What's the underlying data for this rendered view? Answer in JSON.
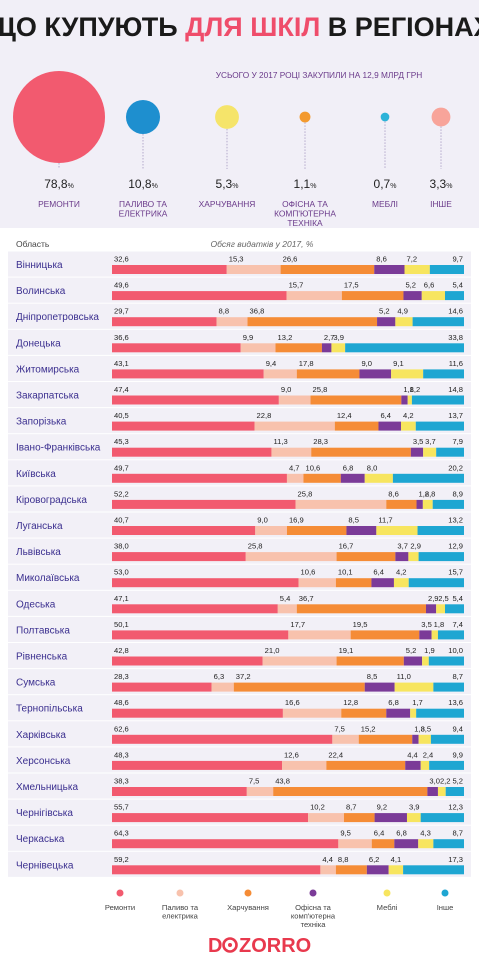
{
  "header": {
    "title_part1": "ЩО КУПУЮТЬ",
    "title_accent": "ДЛЯ ШКІЛ",
    "title_part2": "В РЕГІОНАХ",
    "subtitle": "УСЬОГО У 2017 РОЦІ ЗАКУПИЛИ НА 12,9 МЛРД ГРН"
  },
  "summary": [
    {
      "value": "78,8",
      "unit": "%",
      "label": [
        "РЕМОНТИ"
      ],
      "color": "#f25a6f",
      "share": 78.8
    },
    {
      "value": "10,8",
      "unit": "%",
      "label": [
        "ПАЛИВО ТА",
        "ЕЛЕКТРИКА"
      ],
      "color": "#1e8fcf",
      "share": 10.8
    },
    {
      "value": "5,3",
      "unit": "%",
      "label": [
        "ХАРЧУВАННЯ"
      ],
      "color": "#f5e46a",
      "share": 5.3
    },
    {
      "value": "1,1",
      "unit": "%",
      "label": [
        "ОФІСНА ТА",
        "КОМП'ЮТЕРНА",
        "ТЕХНІКА"
      ],
      "color": "#f39a2f",
      "share": 1.1
    },
    {
      "value": "0,7",
      "unit": "%",
      "label": [
        "МЕБЛІ"
      ],
      "color": "#2cb3d8",
      "share": 0.7
    },
    {
      "value": "3,3",
      "unit": "%",
      "label": [
        "ІНШЕ"
      ],
      "color": "#f8a49a",
      "share": 3.3
    }
  ],
  "table_header": {
    "region_col": "Область",
    "value_col": "Обсяг видатків у 2017, %"
  },
  "chart_data": {
    "type": "bar",
    "stacked": true,
    "orientation": "horizontal",
    "xlim": [
      0,
      100
    ],
    "categories": [
      "Вінницька",
      "Волинська",
      "Дніпропетровська",
      "Донецька",
      "Житомирська",
      "Закарпатська",
      "Запорізька",
      "Івано-Франківська",
      "Київська",
      "Кіровоградська",
      "Луганська",
      "Львівська",
      "Миколаївська",
      "Одеська",
      "Полтавська",
      "Рівненська",
      "Сумська",
      "Тернопільська",
      "Харківська",
      "Херсонська",
      "Хмельницька",
      "Чернігівська",
      "Черкаська",
      "Чернівецька"
    ],
    "series": [
      {
        "name": "Ремонти",
        "color": "#f25a6f",
        "values": [
          32.6,
          49.6,
          29.7,
          36.6,
          43.1,
          47.4,
          40.5,
          45.3,
          49.7,
          52.2,
          40.7,
          38.0,
          53.0,
          47.1,
          50.1,
          42.8,
          28.3,
          48.6,
          62.6,
          48.3,
          38.3,
          55.7,
          64.3,
          59.2
        ]
      },
      {
        "name": "Паливо та електрика",
        "color": "#f8c2ad",
        "values": [
          15.3,
          15.7,
          8.8,
          9.9,
          9.4,
          9.0,
          22.8,
          11.3,
          4.7,
          25.8,
          9.0,
          25.8,
          10.6,
          5.4,
          17.7,
          21.0,
          6.3,
          16.6,
          7.5,
          12.6,
          7.5,
          10.2,
          9.5,
          4.4
        ]
      },
      {
        "name": "Харчування",
        "color": "#f58c36",
        "values": [
          26.6,
          17.5,
          36.8,
          13.2,
          17.8,
          25.8,
          12.4,
          28.3,
          10.6,
          8.6,
          16.9,
          16.7,
          10.1,
          36.7,
          19.5,
          19.1,
          37.2,
          12.8,
          15.2,
          22.4,
          43.8,
          8.7,
          6.4,
          8.8
        ]
      },
      {
        "name": "Офісна та комп'ютерна техніка",
        "color": "#7b3b98",
        "values": [
          8.6,
          5.2,
          5.2,
          2.7,
          9.0,
          1.8,
          6.4,
          3.5,
          6.8,
          1.8,
          8.5,
          3.7,
          6.4,
          2.9,
          3.5,
          5.2,
          8.5,
          6.8,
          1.8,
          4.4,
          3.0,
          9.2,
          6.8,
          6.2
        ]
      },
      {
        "name": "Меблі",
        "color": "#f7e55f",
        "values": [
          7.2,
          6.6,
          4.9,
          3.9,
          9.1,
          1.2,
          4.2,
          3.7,
          8.0,
          2.8,
          11.7,
          2.9,
          4.2,
          2.5,
          1.8,
          1.9,
          11.0,
          1.7,
          3.5,
          2.4,
          2.2,
          3.9,
          4.3,
          4.1
        ]
      },
      {
        "name": "Інше",
        "color": "#1ea6d2",
        "values": [
          9.7,
          5.4,
          14.6,
          33.8,
          11.6,
          14.8,
          13.7,
          7.9,
          20.2,
          8.9,
          13.2,
          12.9,
          15.7,
          5.4,
          7.4,
          10.0,
          8.7,
          13.6,
          9.4,
          9.9,
          5.2,
          12.3,
          8.7,
          17.3
        ]
      }
    ]
  },
  "legend": [
    {
      "lines": [
        "Ремонти"
      ],
      "color": "#f25a6f"
    },
    {
      "lines": [
        "Паливо та",
        "електрика"
      ],
      "color": "#f8c2ad"
    },
    {
      "lines": [
        "Харчування"
      ],
      "color": "#f58c36"
    },
    {
      "lines": [
        "Офісна та",
        "комп'ютерна",
        "техніка"
      ],
      "color": "#7b3b98"
    },
    {
      "lines": [
        "Меблі"
      ],
      "color": "#f7e55f"
    },
    {
      "lines": [
        "Інше"
      ],
      "color": "#1ea6d2"
    }
  ],
  "footer": {
    "logo_pre": "D",
    "logo_post": "ZORRO",
    "logo_color": "#e8394d"
  }
}
